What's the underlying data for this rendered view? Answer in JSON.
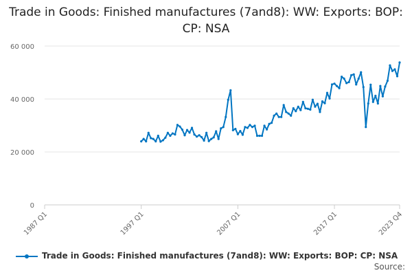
{
  "chart_data": {
    "type": "line",
    "title": "Trade in Goods: Finished manufactures (7and8): WW: Exports: BOP: CP: NSA",
    "xlabel": "",
    "ylabel": "",
    "x_start": "1997 Q1",
    "x_end": "2023 Q4",
    "x_frequency": "quarterly",
    "xlim": [
      "1987 Q1",
      "2023 Q4"
    ],
    "ylim": [
      0,
      60000
    ],
    "x_ticks": [
      "1987 Q1",
      "1997 Q1",
      "2007 Q1",
      "2017 Q1",
      "2023 Q4"
    ],
    "y_ticks": [
      0,
      20000,
      40000,
      60000
    ],
    "y_tick_labels": [
      "0",
      "20 000",
      "40 000",
      "60 000"
    ],
    "grid": "horizontal",
    "legend_position": "bottom",
    "color": "#0075c2",
    "series": [
      {
        "name": "Trade in Goods: Finished manufactures (7and8): WW: Exports: BOP: CP: NSA",
        "values": [
          24000,
          24900,
          24000,
          27200,
          25200,
          24900,
          24000,
          26100,
          23900,
          24400,
          25400,
          27200,
          26100,
          27000,
          26600,
          30200,
          29600,
          28400,
          26300,
          28300,
          27300,
          29100,
          26600,
          25800,
          26300,
          25600,
          24300,
          27200,
          24100,
          24900,
          25500,
          27800,
          24900,
          28900,
          29400,
          33200,
          39700,
          43300,
          28200,
          28700,
          26700,
          27900,
          26500,
          29400,
          29100,
          30200,
          29400,
          29900,
          26100,
          26100,
          26100,
          29900,
          28500,
          30600,
          31000,
          33700,
          34500,
          33200,
          33200,
          37700,
          35100,
          34500,
          33700,
          36500,
          35400,
          37100,
          35800,
          38900,
          36500,
          36300,
          36000,
          39700,
          37100,
          38200,
          35100,
          39100,
          38400,
          42300,
          40200,
          45500,
          45800,
          44900,
          44100,
          48400,
          47700,
          46000,
          46400,
          49000,
          49300,
          45500,
          47700,
          50100,
          44500,
          29400,
          38300,
          45400,
          38900,
          41200,
          38300,
          44900,
          41000,
          44700,
          46900,
          52700,
          50600,
          51200,
          48600,
          53800
        ]
      }
    ]
  },
  "source_label": "Source:"
}
